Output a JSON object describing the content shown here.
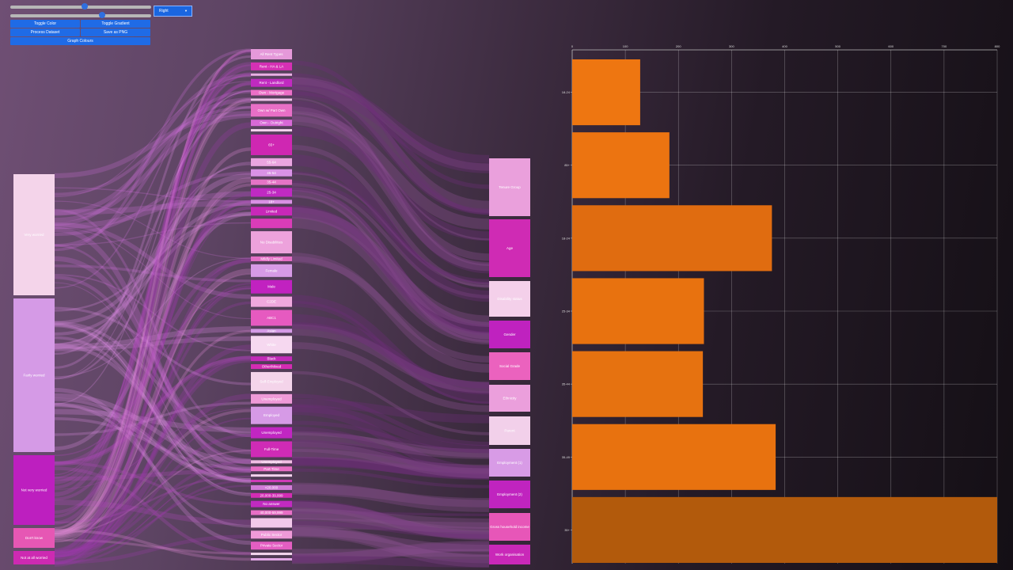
{
  "controls": {
    "slider_1_level": 0.53,
    "slider_2_level": 0.65,
    "dropdown_value": "Right",
    "buttons": {
      "toggle_color": "Toggle Color",
      "toggle_gradient": "Toggle Gradient",
      "process_dataset": "Process Dataset",
      "save_png": "Save as PNG",
      "graph_colours": "Graph Colours"
    }
  },
  "sankey": {
    "left_nodes": [
      {
        "label": "Very worried",
        "color": "#f4d4ea"
      },
      {
        "label": "Fairly worried",
        "color": "#d59ae6"
      },
      {
        "label": "Not very worried",
        "color": "#bd1fbf"
      },
      {
        "label": "Don't know",
        "color": "#e657b4"
      },
      {
        "label": "Not at all worried",
        "color": "#cd2ab2"
      }
    ],
    "middle_nodes": [
      {
        "label": "All Rent Types",
        "color": "#e599da"
      },
      {
        "label": "Rent - HA & LA",
        "color": "#d530b4"
      },
      {
        "label": "",
        "color": "#eab0e4"
      },
      {
        "label": "Rent - Landlord",
        "color": "#c12ac0"
      },
      {
        "label": "Own - Mortgage",
        "color": "#ec6fc7"
      },
      {
        "label": "",
        "color": "#f0c5ea"
      },
      {
        "label": "Own w/ Part Own",
        "color": "#e86fc6"
      },
      {
        "label": "Own - Outright",
        "color": "#d869d6"
      },
      {
        "label": "",
        "color": "#f4d2ee"
      },
      {
        "label": "65+",
        "color": "#cf27b2"
      },
      {
        "label": "55-64",
        "color": "#eaa5e0"
      },
      {
        "label": "45-54",
        "color": "#d992e6"
      },
      {
        "label": "35-44",
        "color": "#e574c6"
      },
      {
        "label": "25-34",
        "color": "#c02ac2"
      },
      {
        "label": "18+",
        "color": "#d990e4"
      },
      {
        "label": "Limited",
        "color": "#c828b8"
      },
      {
        "label": "",
        "color": "#da3cb8"
      },
      {
        "label": "No Disabilities",
        "color": "#eda2dc"
      },
      {
        "label": "Mildly Limited",
        "color": "#e46ec6"
      },
      {
        "label": "Female",
        "color": "#d79ae6"
      },
      {
        "label": "Male",
        "color": "#c122c0"
      },
      {
        "label": "C2DE",
        "color": "#f0a8de"
      },
      {
        "label": "ABC1",
        "color": "#e65ac0"
      },
      {
        "label": "Asian",
        "color": "#d49ae6"
      },
      {
        "label": "White",
        "color": "#f6d8f0"
      },
      {
        "label": "Black",
        "color": "#c229b8"
      },
      {
        "label": "Other/Mixed",
        "color": "#d42cb2"
      },
      {
        "label": "Self-Employed",
        "color": "#f4d4ea"
      },
      {
        "label": "Unemployed",
        "color": "#ef9ad8"
      },
      {
        "label": "Employed",
        "color": "#d69ae6"
      },
      {
        "label": "Unemployed",
        "color": "#c126c2"
      },
      {
        "label": "Full-Time",
        "color": "#cf2bb6"
      },
      {
        "label": "Unemployed",
        "color": "#f0bde4"
      },
      {
        "label": "Part-Time",
        "color": "#e86ec6"
      },
      {
        "label": "",
        "color": "#f4d2ee"
      },
      {
        "label": "",
        "color": "#d03ab8"
      },
      {
        "label": "<20,000",
        "color": "#d27cd8"
      },
      {
        "label": "20,000-39,999",
        "color": "#d42cb4"
      },
      {
        "label": "No answer",
        "color": "#c12ac0"
      },
      {
        "label": "40,000-59,999",
        "color": "#e86fc6"
      },
      {
        "label": "",
        "color": "#f2c8ea"
      },
      {
        "label": "Public Sector",
        "color": "#ef9ad8"
      },
      {
        "label": "Private Sector",
        "color": "#e45ec2"
      },
      {
        "label": "",
        "color": "#f6d8f0"
      },
      {
        "label": "",
        "color": "#e0a6e4"
      }
    ],
    "right_nodes": [
      {
        "label": "Tenure Group",
        "color": "#eaa0dc"
      },
      {
        "label": "Age",
        "color": "#cf2bb4"
      },
      {
        "label": "Disability status",
        "color": "#f4d0ea"
      },
      {
        "label": "Gender",
        "color": "#bf22bf"
      },
      {
        "label": "Social Grade",
        "color": "#eb62be"
      },
      {
        "label": "Ethnicity",
        "color": "#eb9fdc"
      },
      {
        "label": "Parent",
        "color": "#f2d0ea"
      },
      {
        "label": "Employment (1)",
        "color": "#d89be6"
      },
      {
        "label": "Employment (2)",
        "color": "#c024bf"
      },
      {
        "label": "Gross household income",
        "color": "#e756b8"
      },
      {
        "label": "Work organisation",
        "color": "#c928b8"
      }
    ]
  },
  "chart_data": {
    "type": "bar",
    "orientation": "horizontal",
    "categories": [
      "18-24",
      "85+",
      "18-24",
      "25-34",
      "35-44",
      "35-49",
      "35+"
    ],
    "values": [
      128,
      183,
      376,
      248,
      246,
      383,
      814
    ],
    "xlim": [
      0,
      800
    ],
    "x_ticks": [
      "0",
      "100",
      "200",
      "300",
      "400",
      "500",
      "600",
      "700",
      "800"
    ],
    "grid": true,
    "title": "",
    "xlabel": "",
    "ylabel": "",
    "colors": [
      "#ee7611",
      "#ec7411",
      "#e06c10",
      "#e8720f",
      "#e67210",
      "#e8720f",
      "#b25a0c"
    ]
  }
}
